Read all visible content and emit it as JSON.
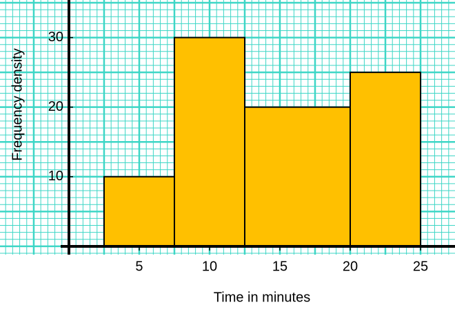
{
  "chart_data": {
    "type": "histogram",
    "bins": [
      2.5,
      7.5,
      12.5,
      20,
      25
    ],
    "values": [
      10,
      30,
      20,
      25
    ],
    "color": "#ffc000",
    "xlabel": "Time in minutes",
    "ylabel": "Frequency density",
    "xlim": [
      -4.9,
      27.45
    ],
    "ylim": [
      -1.2,
      35.4
    ],
    "xticks": [
      5,
      10,
      15,
      20,
      25
    ],
    "yticks": [
      10,
      20,
      30
    ],
    "grid": true
  }
}
